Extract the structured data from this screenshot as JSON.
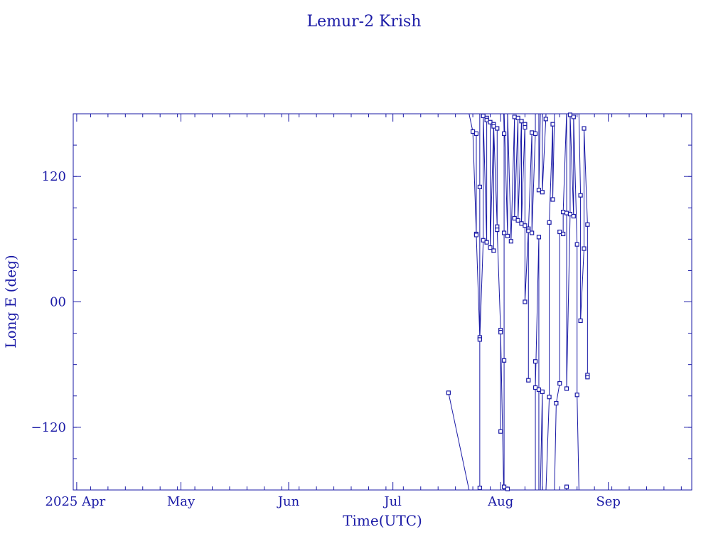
{
  "chart_data": {
    "type": "line",
    "title": "Lemur-2 Krish",
    "xlabel": "Time(UTC)",
    "ylabel": "Long E (deg)",
    "x_range": [
      "2025-03-31",
      "2025-09-25"
    ],
    "ylim": [
      -180,
      180
    ],
    "x_tick_labels": [
      "2025 Apr",
      "May",
      "Jun",
      "Jul",
      "Aug",
      "Sep"
    ],
    "y_tick_labels": [
      "120",
      "00",
      "−120"
    ],
    "y_tick_values": [
      120,
      0,
      -120
    ],
    "grid": false,
    "line_color": "#1a1aa6",
    "series": [
      {
        "marker": "square",
        "wraps_at": 180,
        "points": [
          {
            "x": "2025-07-17",
            "y": -87
          },
          {
            "x": "2025-07-24",
            "y": 163
          },
          {
            "x": "2025-07-25",
            "y": 65
          },
          {
            "x": "2025-07-25",
            "y": 161
          },
          {
            "x": "2025-07-25",
            "y": 64
          },
          {
            "x": "2025-07-26",
            "y": -34
          },
          {
            "x": "2025-07-26",
            "y": -178
          },
          {
            "x": "2025-07-26",
            "y": 110
          },
          {
            "x": "2025-07-26",
            "y": -36
          },
          {
            "x": "2025-07-27",
            "y": 59
          },
          {
            "x": "2025-07-27",
            "y": 178
          },
          {
            "x": "2025-07-28",
            "y": 57
          },
          {
            "x": "2025-07-28",
            "y": 176
          },
          {
            "x": "2025-07-28",
            "y": 174
          },
          {
            "x": "2025-07-29",
            "y": 172
          },
          {
            "x": "2025-07-29",
            "y": 52
          },
          {
            "x": "2025-07-30",
            "y": 170
          },
          {
            "x": "2025-07-30",
            "y": 49
          },
          {
            "x": "2025-07-30",
            "y": 168
          },
          {
            "x": "2025-07-31",
            "y": 72
          },
          {
            "x": "2025-07-31",
            "y": 166
          },
          {
            "x": "2025-07-31",
            "y": 69
          },
          {
            "x": "2025-08-01",
            "y": -27
          },
          {
            "x": "2025-08-01",
            "y": -124
          },
          {
            "x": "2025-08-01",
            "y": -29
          },
          {
            "x": "2025-08-02",
            "y": 161
          },
          {
            "x": "2025-08-02",
            "y": 66
          },
          {
            "x": "2025-08-02",
            "y": -56
          },
          {
            "x": "2025-08-02",
            "y": -177
          },
          {
            "x": "2025-08-03",
            "y": 63
          },
          {
            "x": "2025-08-03",
            "y": -179
          },
          {
            "x": "2025-08-04",
            "y": 58
          },
          {
            "x": "2025-08-05",
            "y": 177
          },
          {
            "x": "2025-08-05",
            "y": 80
          },
          {
            "x": "2025-08-06",
            "y": 176
          },
          {
            "x": "2025-08-06",
            "y": 78
          },
          {
            "x": "2025-08-07",
            "y": 173
          },
          {
            "x": "2025-08-07",
            "y": 75
          },
          {
            "x": "2025-08-08",
            "y": 170
          },
          {
            "x": "2025-08-08",
            "y": 73
          },
          {
            "x": "2025-08-08",
            "y": 167
          },
          {
            "x": "2025-08-08",
            "y": 0
          },
          {
            "x": "2025-08-09",
            "y": 70
          },
          {
            "x": "2025-08-09",
            "y": -75
          },
          {
            "x": "2025-08-09",
            "y": 68
          },
          {
            "x": "2025-08-10",
            "y": 162
          },
          {
            "x": "2025-08-10",
            "y": 66
          },
          {
            "x": "2025-08-11",
            "y": 161
          },
          {
            "x": "2025-08-11",
            "y": -57
          },
          {
            "x": "2025-08-11",
            "y": -82
          },
          {
            "x": "2025-08-12",
            "y": 62
          },
          {
            "x": "2025-08-12",
            "y": -84
          },
          {
            "x": "2025-08-12",
            "y": 107
          },
          {
            "x": "2025-08-13",
            "y": -86
          },
          {
            "x": "2025-08-13",
            "y": 105
          },
          {
            "x": "2025-08-14",
            "y": 175
          },
          {
            "x": "2025-08-15",
            "y": -91
          },
          {
            "x": "2025-08-15",
            "y": 76
          },
          {
            "x": "2025-08-16",
            "y": 170
          },
          {
            "x": "2025-08-16",
            "y": 98
          },
          {
            "x": "2025-08-17",
            "y": -97
          },
          {
            "x": "2025-08-18",
            "y": -78
          },
          {
            "x": "2025-08-18",
            "y": 67
          },
          {
            "x": "2025-08-19",
            "y": 65
          },
          {
            "x": "2025-08-19",
            "y": 86
          },
          {
            "x": "2025-08-20",
            "y": -177
          },
          {
            "x": "2025-08-20",
            "y": 85
          },
          {
            "x": "2025-08-20",
            "y": -83
          },
          {
            "x": "2025-08-21",
            "y": 84
          },
          {
            "x": "2025-08-21",
            "y": 179
          },
          {
            "x": "2025-08-22",
            "y": 82
          },
          {
            "x": "2025-08-22",
            "y": 177
          },
          {
            "x": "2025-08-23",
            "y": 55
          },
          {
            "x": "2025-08-23",
            "y": -89
          },
          {
            "x": "2025-08-24",
            "y": 102
          },
          {
            "x": "2025-08-24",
            "y": -18
          },
          {
            "x": "2025-08-25",
            "y": 51
          },
          {
            "x": "2025-08-25",
            "y": 166
          },
          {
            "x": "2025-08-26",
            "y": 74
          },
          {
            "x": "2025-08-26",
            "y": -70
          },
          {
            "x": "2025-08-26",
            "y": -72
          }
        ]
      }
    ]
  }
}
